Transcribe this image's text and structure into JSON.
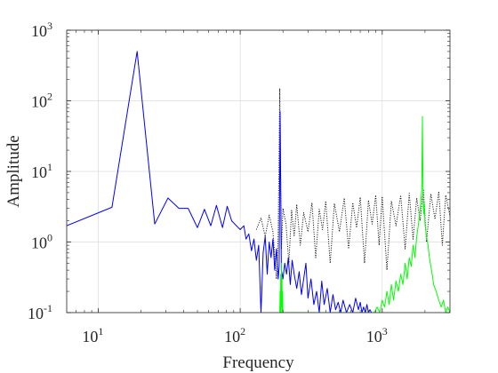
{
  "chart_data": {
    "type": "line",
    "title": "",
    "xlabel": "Frequency",
    "ylabel": "Amplitude",
    "xscale": "log",
    "yscale": "log",
    "xlim": [
      6,
      3000
    ],
    "ylim": [
      0.1,
      1000
    ],
    "grid": true,
    "legend": "none",
    "x_ticks": [
      {
        "value": 10,
        "base": "10",
        "exp": "1"
      },
      {
        "value": 100,
        "base": "10",
        "exp": "2"
      },
      {
        "value": 1000,
        "base": "10",
        "exp": "3"
      }
    ],
    "y_ticks": [
      {
        "value": 0.1,
        "base": "10",
        "exp": "-1"
      },
      {
        "value": 1,
        "base": "10",
        "exp": "0"
      },
      {
        "value": 10,
        "base": "10",
        "exp": "1"
      },
      {
        "value": 100,
        "base": "10",
        "exp": "2"
      },
      {
        "value": 1000,
        "base": "10",
        "exp": "3"
      }
    ],
    "series": [
      {
        "color": "#000000",
        "style": "dotted",
        "x": [
          130,
          140,
          150,
          160,
          170,
          180,
          185,
          190,
          195,
          200,
          210,
          220,
          230,
          240,
          250,
          265,
          280,
          300,
          320,
          340,
          360,
          380,
          400,
          430,
          460,
          500,
          540,
          580,
          620,
          660,
          700,
          750,
          800,
          850,
          900,
          950,
          1000,
          1080,
          1160,
          1250,
          1350,
          1450,
          1550,
          1650,
          1750,
          1850,
          1950,
          2050,
          2200,
          2350,
          2500,
          2650,
          2800,
          3000
        ],
        "y": [
          1.5,
          2.2,
          1.2,
          2.4,
          1.4,
          0.3,
          1.2,
          150,
          0.8,
          3.0,
          1.8,
          0.5,
          2.8,
          1.2,
          3.4,
          0.9,
          2.6,
          1.4,
          3.6,
          0.6,
          2.9,
          1.5,
          3.8,
          0.5,
          3.5,
          1.4,
          4.2,
          0.8,
          3.6,
          1.6,
          4.3,
          0.5,
          3.9,
          1.8,
          4.6,
          0.9,
          4.4,
          0.4,
          3.8,
          1.7,
          4.6,
          0.8,
          4.9,
          1.1,
          4.2,
          2.0,
          5.6,
          1.0,
          4.8,
          2.1,
          5.2,
          0.9,
          4.6,
          2.3
        ]
      },
      {
        "color": "#0000ff",
        "style": "solid",
        "x": [
          6,
          12.5,
          18.8,
          25,
          31,
          37,
          43,
          50,
          56,
          62,
          68,
          75,
          81,
          87,
          94,
          100,
          106,
          110,
          115,
          120,
          125,
          130,
          135,
          140,
          145,
          150,
          155,
          160,
          165,
          170,
          175,
          180,
          185,
          188,
          191,
          195,
          200,
          206,
          212,
          218,
          225,
          232,
          240,
          250,
          260,
          270,
          280,
          290,
          300,
          315,
          330,
          345,
          360,
          375,
          390,
          410,
          430,
          450,
          470,
          490,
          510,
          530,
          560,
          590,
          620,
          650,
          680,
          700,
          720,
          740,
          760,
          780,
          800,
          820,
          840
        ],
        "y": [
          1.7,
          3.1,
          500,
          1.8,
          4.2,
          3.0,
          3.0,
          1.6,
          2.9,
          1.7,
          3.3,
          1.6,
          3.2,
          2.0,
          1.7,
          1.5,
          1.7,
          1.1,
          1.3,
          0.75,
          1.1,
          0.55,
          0.9,
          0.1,
          0.7,
          1.2,
          0.35,
          1.0,
          0.6,
          1.1,
          0.4,
          0.8,
          0.3,
          0.45,
          70,
          0.4,
          0.3,
          0.5,
          0.35,
          0.6,
          0.25,
          0.55,
          0.35,
          0.22,
          0.38,
          0.18,
          0.3,
          0.5,
          0.16,
          0.3,
          0.13,
          0.2,
          0.1,
          0.28,
          0.13,
          0.22,
          0.1,
          0.18,
          0.11,
          0.14,
          0.1,
          0.15,
          0.1,
          0.13,
          0.1,
          0.16,
          0.11,
          0.14,
          0.1,
          0.12,
          0.1,
          0.13,
          0.1,
          0.11,
          0.1
        ]
      },
      {
        "color": "#00ff00",
        "style": "solid",
        "x": [
          190,
          191,
          192,
          193,
          194,
          195,
          196,
          197,
          198,
          199,
          200,
          880,
          920,
          960,
          1000,
          1040,
          1080,
          1120,
          1160,
          1200,
          1250,
          1300,
          1350,
          1400,
          1450,
          1500,
          1550,
          1600,
          1650,
          1700,
          1750,
          1800,
          1850,
          1900,
          1920,
          1940,
          1960,
          1980,
          2000,
          2050,
          2100,
          2150,
          2200,
          2250,
          2300,
          2400,
          2500,
          2600,
          2700,
          2800,
          2900,
          3000
        ],
        "y": [
          0.1,
          0.2,
          0.1,
          0.35,
          0.1,
          0.5,
          0.12,
          0.3,
          0.1,
          0.2,
          0.1,
          0.1,
          0.12,
          0.1,
          0.15,
          0.12,
          0.2,
          0.13,
          0.25,
          0.15,
          0.28,
          0.2,
          0.35,
          0.25,
          0.5,
          0.3,
          0.6,
          0.45,
          0.9,
          0.6,
          1.2,
          1.8,
          3.0,
          5.5,
          60,
          4.0,
          2.5,
          3.5,
          1.8,
          1.2,
          0.9,
          0.6,
          0.45,
          0.35,
          0.25,
          0.2,
          0.15,
          0.12,
          0.15,
          0.1,
          0.12,
          0.1
        ]
      }
    ]
  }
}
